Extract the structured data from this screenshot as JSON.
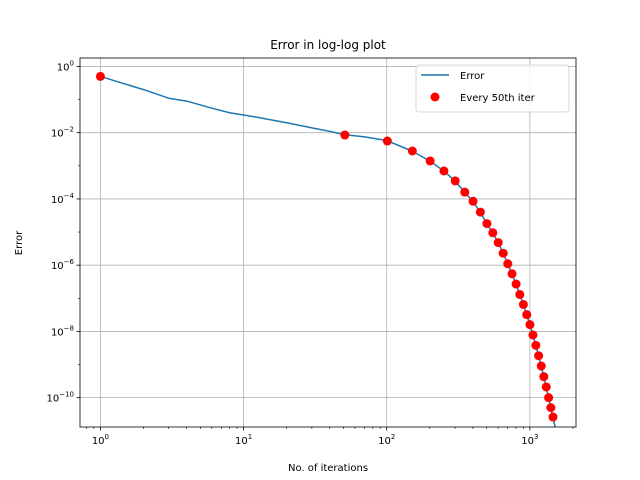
{
  "chart_data": {
    "type": "line",
    "title": "Error in log-log plot",
    "xlabel": "No. of iterations",
    "ylabel": "Error",
    "x_scale": "log",
    "y_scale": "log",
    "xlim": [
      0.72,
      2100
    ],
    "ylim": [
      1.3e-11,
      1.8
    ],
    "grid": true,
    "legend_position": "top-right",
    "x_ticks": [
      {
        "value": 1,
        "base": "10",
        "exp": "0"
      },
      {
        "value": 10,
        "base": "10",
        "exp": "1"
      },
      {
        "value": 100,
        "base": "10",
        "exp": "2"
      },
      {
        "value": 1000,
        "base": "10",
        "exp": "3"
      }
    ],
    "y_ticks": [
      {
        "value": 1,
        "base": "10",
        "exp": "0"
      },
      {
        "value": 0.01,
        "base": "10",
        "exp": "−2"
      },
      {
        "value": 0.0001,
        "base": "10",
        "exp": "−4"
      },
      {
        "value": 1e-06,
        "base": "10",
        "exp": "−6"
      },
      {
        "value": 1e-08,
        "base": "10",
        "exp": "−8"
      },
      {
        "value": 1e-10,
        "base": "10",
        "exp": "−10"
      }
    ],
    "series": [
      {
        "name": "Error",
        "kind": "line",
        "color": "#1f77b4",
        "x": [
          1,
          2,
          3,
          4,
          6,
          8,
          12,
          20,
          30,
          40,
          50,
          70,
          100,
          150,
          200,
          250,
          300,
          350,
          400,
          450,
          500,
          550,
          600,
          650,
          700,
          750,
          800,
          850,
          900,
          950,
          1000,
          1050,
          1100,
          1150,
          1200,
          1250,
          1300,
          1350,
          1400,
          1450,
          1500
        ],
        "y": [
          0.5,
          0.2,
          0.11,
          0.09,
          0.055,
          0.04,
          0.03,
          0.02,
          0.014,
          0.011,
          0.0088,
          0.0075,
          0.0058,
          0.0028,
          0.0014,
          0.0007,
          0.00035,
          0.00016,
          8.5e-05,
          4e-05,
          1.8e-05,
          9.5e-06,
          4.8e-06,
          2.3e-06,
          1.1e-06,
          5.5e-07,
          2.7e-07,
          1.3e-07,
          6.5e-08,
          3.2e-08,
          1.6e-08,
          7.8e-09,
          3.8e-09,
          1.85e-09,
          9e-10,
          4.3e-10,
          2.1e-10,
          1e-10,
          5e-11,
          2.5e-11,
          1.3e-11
        ]
      },
      {
        "name": "Every 50th iter",
        "kind": "scatter",
        "color": "#ff0000",
        "x": [
          1,
          51,
          101,
          151,
          201,
          251,
          301,
          351,
          401,
          451,
          501,
          551,
          601,
          651,
          701,
          751,
          801,
          851,
          901,
          951,
          1001,
          1051,
          1101,
          1151,
          1201,
          1251,
          1301,
          1351,
          1401,
          1451
        ],
        "y": [
          0.5,
          0.0085,
          0.0056,
          0.0028,
          0.0014,
          0.0007,
          0.00035,
          0.00016,
          8.5e-05,
          4e-05,
          1.8e-05,
          9.5e-06,
          4.8e-06,
          2.3e-06,
          1.1e-06,
          5.5e-07,
          2.7e-07,
          1.3e-07,
          6.5e-08,
          3.2e-08,
          1.6e-08,
          7.8e-09,
          3.8e-09,
          1.85e-09,
          9e-10,
          4.3e-10,
          2.1e-10,
          1e-10,
          5e-11,
          2.6e-11
        ]
      }
    ]
  }
}
